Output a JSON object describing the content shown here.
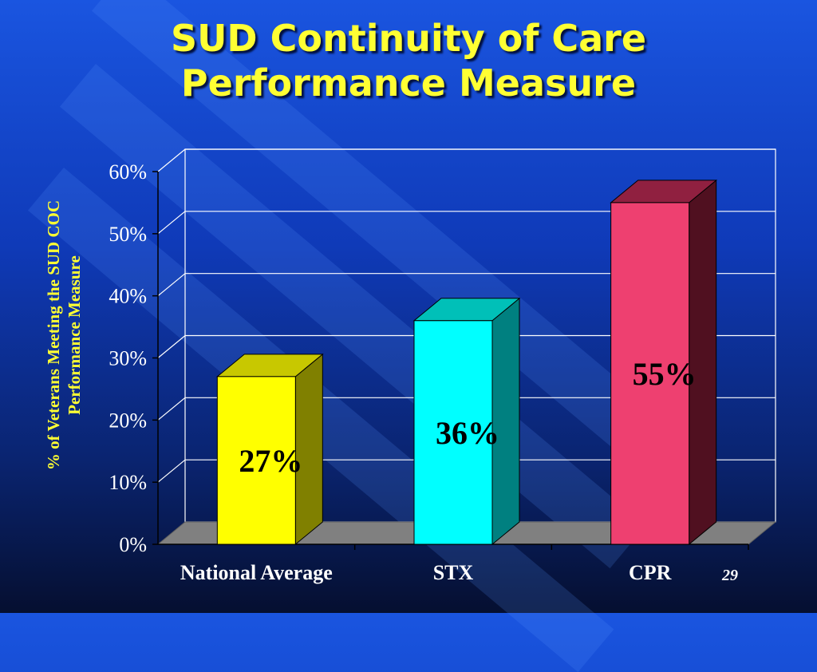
{
  "title_line1": "SUD Continuity of Care",
  "title_line2": "Performance Measure",
  "page_number": "29",
  "chart_data": {
    "type": "bar",
    "ylabel": "% of Veterans Meeting the SUD COC Performance Measure",
    "ylabel_line1": "% of Veterans Meeting the SUD COC",
    "ylabel_line2": "Performance Measure",
    "categories": [
      "National Average",
      "STX",
      "CPR"
    ],
    "values": [
      27,
      36,
      55
    ],
    "data_labels": [
      "27%",
      "36%",
      "55%"
    ],
    "ylim": [
      0,
      60
    ],
    "yticks": [
      "0%",
      "10%",
      "20%",
      "30%",
      "40%",
      "50%",
      "60%"
    ],
    "grid": true,
    "colors": {
      "bar_fronts": [
        "#ffff00",
        "#00ffff",
        "#ee4070"
      ],
      "bar_tops": [
        "#c8c800",
        "#00c0b8",
        "#902040"
      ],
      "bar_sides": [
        "#808000",
        "#008080",
        "#501020"
      ],
      "floor": "#808080",
      "text": "#000000",
      "axis_text": "#ffffff"
    }
  }
}
